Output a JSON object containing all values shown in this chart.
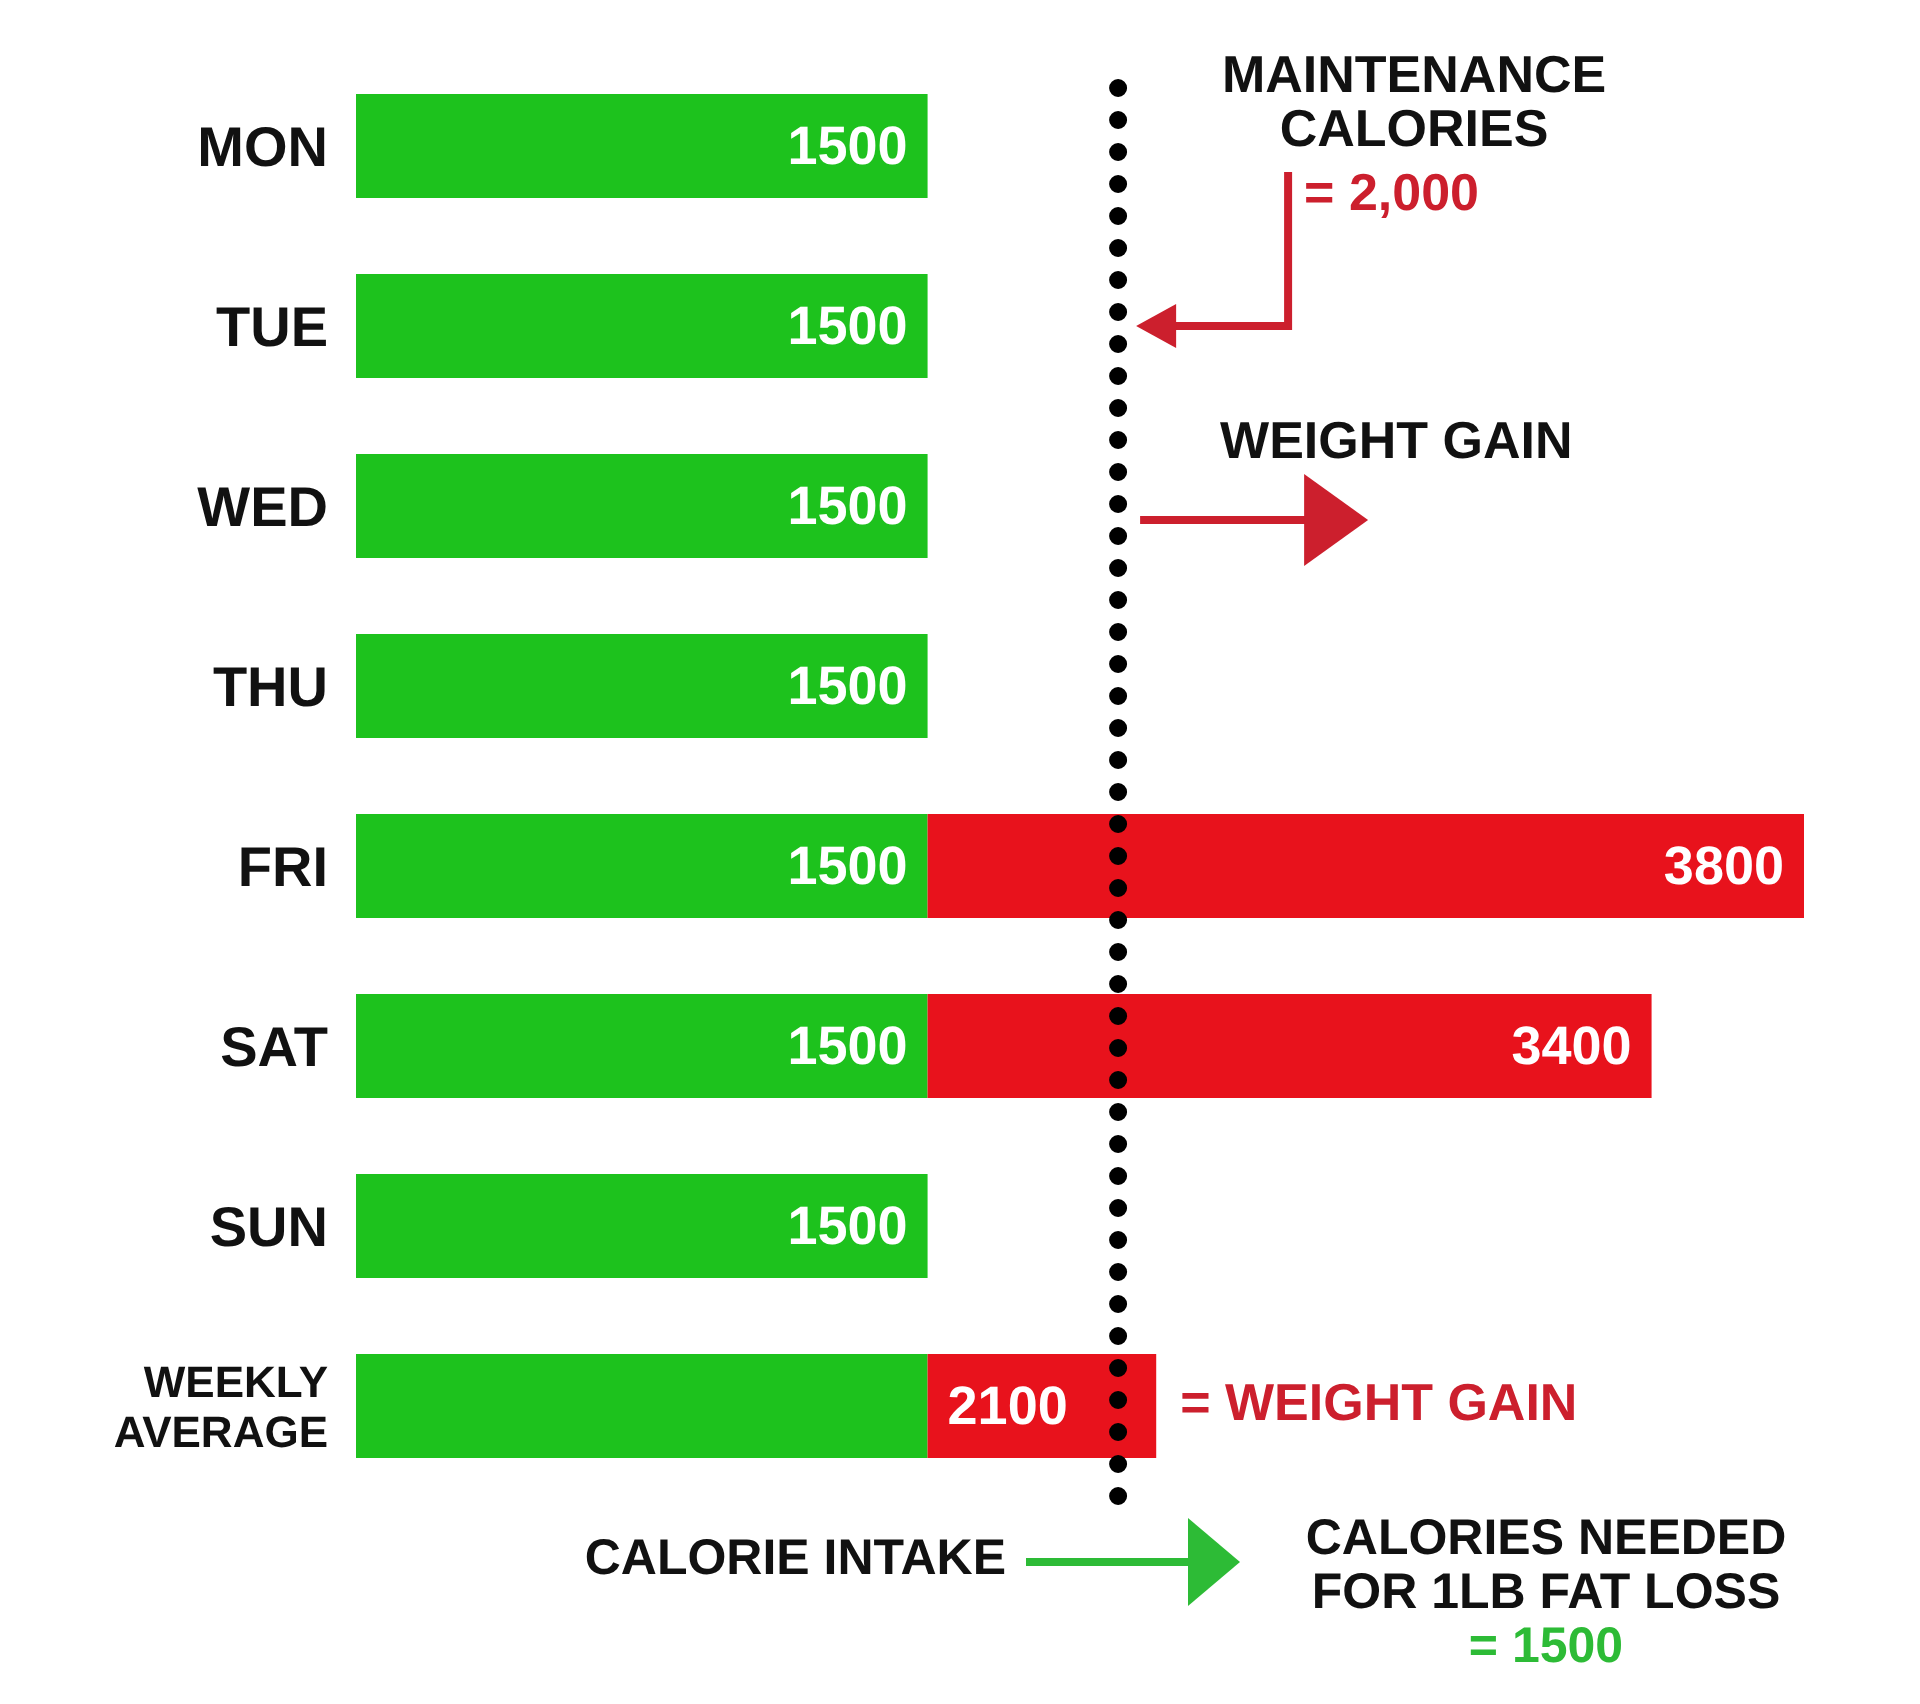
{
  "chart_data": {
    "type": "bar",
    "orientation": "horizontal",
    "stacked": true,
    "categories": [
      "MON",
      "TUE",
      "WED",
      "THU",
      "FRI",
      "SAT",
      "SUN",
      "WEEKLY AVERAGE"
    ],
    "series": [
      {
        "color": "#1dc21d",
        "values": [
          1500,
          1500,
          1500,
          1500,
          1500,
          1500,
          1500,
          1500
        ],
        "value_labels": [
          "1500",
          "1500",
          "1500",
          "1500",
          "1500",
          "1500",
          "1500",
          null
        ]
      },
      {
        "color": "#e8121c",
        "values": [
          null,
          null,
          null,
          null,
          2300,
          1900,
          null,
          600
        ]
      }
    ],
    "totals": [
      null,
      null,
      null,
      null,
      "3800",
      "3400",
      null,
      "2100"
    ],
    "tick_labels": "y",
    "ref_lines": [
      {
        "axis": "x",
        "value": 2000,
        "label": "MAINTENANCE CALORIES",
        "color": "#000000",
        "line_style": "dotted"
      }
    ],
    "annotations": [
      "= 2,000",
      "WEIGHT GAIN",
      {
        "text": "= WEIGHT GAIN",
        "x": 2100
      },
      "CALORIE INTAKE",
      "CALORIES NEEDED FOR 1LB FAT LOSS",
      "= 1500"
    ]
  }
}
